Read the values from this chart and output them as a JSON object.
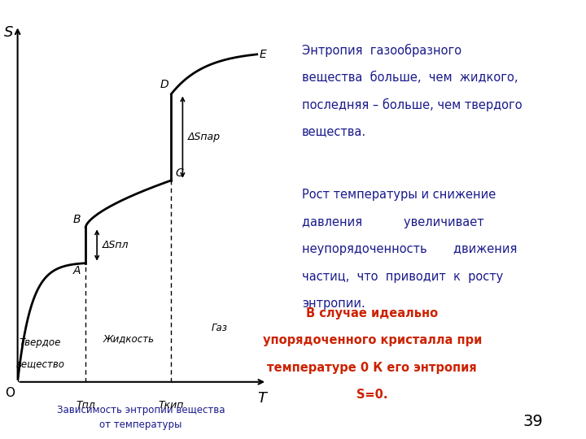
{
  "bg_color": "#ffffff",
  "text_color_dark_blue": "#1a1a8c",
  "text_color_red": "#cc2200",
  "text_color_black": "#000000",
  "text1_line1": "Энтропия  газообразного",
  "text1_line2": "вещества  больше,  чем  жидкого,",
  "text1_line3": "последняя – больше, чем твердого",
  "text1_line4": "вещества.",
  "text2_line1": "Рост температуры и снижение",
  "text2_line2": "давления           увеличивает",
  "text2_line3": "неупорядоченность       движения",
  "text2_line4": "частиц,  что  приводит  к  росту",
  "text2_line5": "энтропии.",
  "text3_line1": "В случае идеально",
  "text3_line2": "упорядоченного кристалла при",
  "text3_line3": "температуре 0 К его энтропия",
  "text3_line4": "S=0.",
  "caption_line1": "Зависимость энтропии вещества",
  "caption_line2": "от температуры",
  "page_number": "39",
  "label_S": "S",
  "label_O": "O",
  "label_T": "T",
  "label_T_pl": "Tпл",
  "label_T_kip": "Tкип",
  "label_A": "A",
  "label_B": "B",
  "label_C": "C",
  "label_D": "D",
  "label_E": "E",
  "label_dS_pl": "ΔSпл",
  "label_dS_par": "ΔSпар",
  "label_tverd_1": "Твердое",
  "label_tverd_2": "вещество",
  "label_zhid": "Жидкость",
  "label_gaz": "Газ"
}
